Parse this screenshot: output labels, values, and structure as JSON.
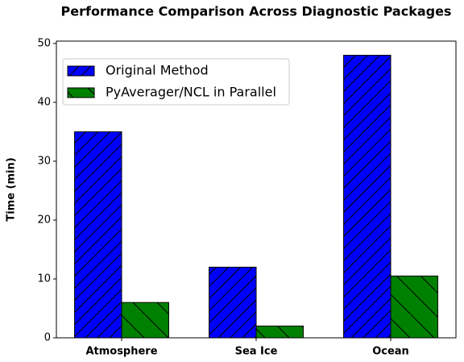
{
  "chart_data": {
    "type": "bar",
    "title": "Performance Comparison Across Diagnostic Packages",
    "y_label": "Time (min)",
    "categories": [
      "Atmosphere",
      "Sea Ice",
      "Ocean"
    ],
    "series": [
      {
        "name": "Original Method",
        "color": "#0000ff",
        "hatch": "/",
        "values": [
          35,
          12,
          48
        ]
      },
      {
        "name": "PyAverager/NCL in Parallel",
        "color": "#008000",
        "hatch": "\\",
        "values": [
          6,
          2,
          10.5
        ]
      }
    ],
    "ylim": [
      0,
      50.4
    ],
    "yticks": [
      0,
      10,
      20,
      30,
      40,
      50
    ],
    "legend": "upper left"
  }
}
